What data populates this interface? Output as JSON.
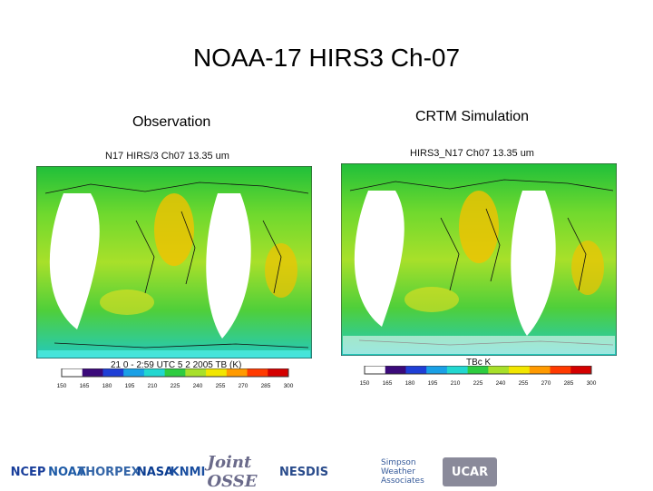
{
  "slide": {
    "title": "NOAA-17 HIRS3 Ch-07",
    "left_label": "Observation",
    "right_label": "CRTM Simulation"
  },
  "left_map": {
    "title": "N17 HIRS/3 Ch07 13.35 um",
    "caption": "21 0 - 2:59 UTC 5 2 2005 TB (K)"
  },
  "right_map": {
    "title": "HIRS3_N17 Ch07 13.35 um",
    "caption": "TBc K"
  },
  "colorbar": {
    "ticks": [
      "150",
      "165",
      "180",
      "195",
      "210",
      "225",
      "240",
      "255",
      "270",
      "285",
      "300"
    ],
    "colors": [
      "#ffffff",
      "#3b0a7a",
      "#1f3fd6",
      "#1aa0e6",
      "#22d7d0",
      "#2ecc40",
      "#a8e02a",
      "#f2e600",
      "#ff9a00",
      "#ff3a00",
      "#d40000"
    ]
  },
  "logos": [
    {
      "name": "NCEP",
      "text": "NCEP",
      "color": "#1a3f9b"
    },
    {
      "name": "NOAA",
      "text": "NOAA",
      "color": "#1d5aa6"
    },
    {
      "name": "THORPEX",
      "text": "THORPEX",
      "color": "#3566a8"
    },
    {
      "name": "NASA",
      "text": "NASA",
      "color": "#0b3d91"
    },
    {
      "name": "KNMI",
      "text": "KNMI",
      "color": "#1b4fa0"
    },
    {
      "name": "Joint OSSE",
      "text": "Joint OSSE",
      "color": "#6a6a8a"
    },
    {
      "name": "NESDIS",
      "text": "NESDIS",
      "color": "#2a4c8c"
    },
    {
      "name": "Simpson Weather Associates",
      "text": "Simpson Weather Associates",
      "color": "#355a9a"
    },
    {
      "name": "UCAR",
      "text": "UCAR",
      "color": "#ffffff"
    }
  ]
}
